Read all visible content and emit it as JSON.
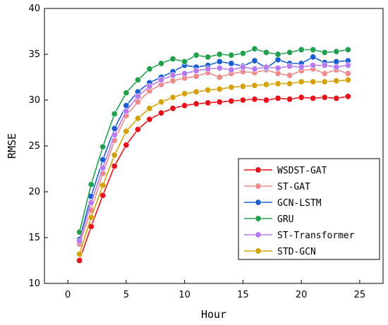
{
  "chart_data": {
    "type": "line",
    "title": "",
    "xlabel": "Hour",
    "ylabel": "RMSE",
    "xlim": [
      -2,
      27
    ],
    "ylim": [
      10,
      40
    ],
    "xticks": [
      0,
      5,
      10,
      15,
      20,
      25
    ],
    "yticks": [
      10,
      15,
      20,
      25,
      30,
      35,
      40
    ],
    "grid": false,
    "legend_position": "lower-right",
    "x": [
      1,
      2,
      3,
      4,
      5,
      6,
      7,
      8,
      9,
      10,
      11,
      12,
      13,
      14,
      15,
      16,
      17,
      18,
      19,
      20,
      21,
      22,
      23,
      24
    ],
    "series": [
      {
        "name": "WSDST-GAT",
        "color": "#e8101a",
        "marker_color": "#e8101a",
        "values": [
          12.5,
          16.2,
          19.6,
          22.8,
          25.1,
          26.8,
          27.9,
          28.6,
          29.1,
          29.4,
          29.6,
          29.7,
          29.8,
          29.9,
          30.0,
          30.1,
          30.0,
          30.2,
          30.1,
          30.3,
          30.2,
          30.3,
          30.2,
          30.4
        ]
      },
      {
        "name": "ST-GAT",
        "color": "#f08a8a",
        "marker_color": "#f08a8a",
        "values": [
          14.3,
          18.0,
          22.0,
          25.6,
          28.3,
          29.8,
          31.0,
          31.7,
          32.1,
          32.4,
          32.6,
          33.0,
          32.5,
          32.9,
          33.1,
          33.0,
          33.3,
          32.9,
          32.7,
          33.2,
          33.4,
          32.9,
          33.3,
          32.9
        ]
      },
      {
        "name": "GCN-LSTM",
        "color": "#1a5fd0",
        "marker_color": "#1a5fd0",
        "values": [
          14.8,
          19.5,
          23.5,
          26.9,
          29.4,
          30.9,
          31.9,
          32.5,
          33.1,
          33.8,
          33.6,
          33.8,
          34.2,
          34.0,
          33.7,
          34.3,
          33.5,
          34.4,
          34.0,
          34.0,
          34.7,
          34.1,
          34.2,
          34.3
        ]
      },
      {
        "name": "GRU",
        "color": "#22a050",
        "marker_color": "#22a050",
        "values": [
          15.6,
          20.8,
          24.9,
          28.5,
          30.8,
          32.2,
          33.4,
          34.0,
          34.5,
          34.2,
          34.9,
          34.7,
          35.0,
          34.9,
          35.1,
          35.6,
          35.2,
          35.0,
          35.2,
          35.5,
          35.5,
          35.2,
          35.3,
          35.5
        ]
      },
      {
        "name": "ST-Transformer",
        "color": "#b87af0",
        "marker_color": "#b87af0",
        "values": [
          14.6,
          18.8,
          22.6,
          26.2,
          28.8,
          30.4,
          31.5,
          32.2,
          32.7,
          32.9,
          33.2,
          33.4,
          33.5,
          33.3,
          33.6,
          33.4,
          33.6,
          33.5,
          33.7,
          33.6,
          33.8,
          33.8,
          33.6,
          33.8
        ]
      },
      {
        "name": "STD-GCN",
        "color": "#d4a30a",
        "marker_color": "#d4a30a",
        "values": [
          13.2,
          17.2,
          20.7,
          24.0,
          26.6,
          28.0,
          29.1,
          29.8,
          30.3,
          30.7,
          30.9,
          31.1,
          31.2,
          31.4,
          31.5,
          31.6,
          31.7,
          31.8,
          31.8,
          32.0,
          32.0,
          32.0,
          32.1,
          32.2
        ]
      }
    ]
  }
}
